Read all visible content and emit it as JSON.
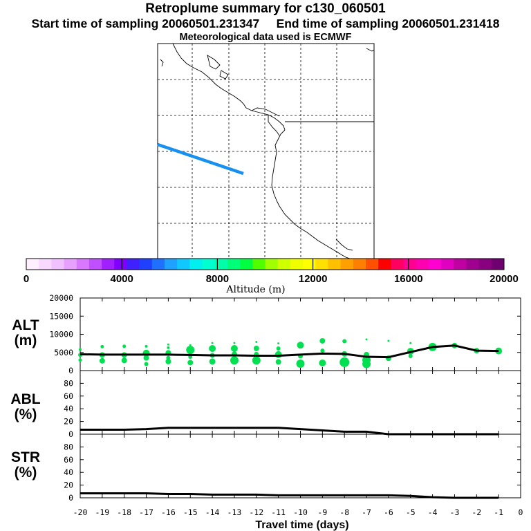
{
  "header": {
    "title": "Retroplume summary for c130_060501",
    "start_label": "Start time of sampling 20060501.231347",
    "end_label": "End time of sampling 20060501.231418",
    "met_label": "Meteorological data used is ECMWF"
  },
  "colorbar": {
    "ticks": [
      "0",
      "4000",
      "8000",
      "12000",
      "16000",
      "20000"
    ],
    "label": "Altitude (m)",
    "colors": [
      "#fff0ff",
      "#f8d8ff",
      "#f0c0ff",
      "#e8a0ff",
      "#d878ff",
      "#c050ff",
      "#a020ff",
      "#8000ff",
      "#4020ff",
      "#2040ff",
      "#2070ff",
      "#20a0ff",
      "#10c8ff",
      "#00f0f0",
      "#00ffd0",
      "#00ffa8",
      "#00ff78",
      "#00ff40",
      "#50ff00",
      "#a0ff00",
      "#d0ff00",
      "#f0ff00",
      "#ffff00",
      "#ffe000",
      "#ffc000",
      "#ffa000",
      "#ff8000",
      "#ff5000",
      "#ff0000",
      "#ff0060",
      "#ff0090",
      "#ff00b0",
      "#ff00d0",
      "#e000c0",
      "#c000a0",
      "#a00090",
      "#880080",
      "#700070"
    ]
  },
  "map": {
    "plume_color": "#1890f0"
  },
  "chart_data": [
    {
      "type": "scatter",
      "panel": "ALT",
      "ylabel_line1": "ALT",
      "ylabel_line2": "(m)",
      "ylim": [
        0,
        20000
      ],
      "yticks": [
        "20000",
        "15000",
        "10000",
        "5000",
        "0"
      ],
      "x": [
        -20,
        -19,
        -18,
        -17,
        -16,
        -15,
        -14,
        -13,
        -12,
        -11,
        -10,
        -9,
        -8,
        -7,
        -6,
        -5,
        -4,
        -3,
        -2,
        -1
      ],
      "mean_altitude": [
        4500,
        4400,
        4400,
        4400,
        4400,
        4300,
        4200,
        4200,
        4100,
        4100,
        4400,
        4700,
        4600,
        3800,
        3700,
        5100,
        6500,
        6900,
        5500,
        5400
      ],
      "point_color": "#00e050",
      "scatter_points": [
        [
          -20,
          2900,
          2.5
        ],
        [
          -20,
          4300,
          3
        ],
        [
          -20,
          5800,
          2
        ],
        [
          -19,
          2700,
          4
        ],
        [
          -19,
          4300,
          4
        ],
        [
          -19,
          6600,
          2.5
        ],
        [
          -18,
          2800,
          4
        ],
        [
          -18,
          4300,
          4
        ],
        [
          -18,
          6700,
          2.5
        ],
        [
          -17,
          1800,
          3
        ],
        [
          -17,
          3500,
          4
        ],
        [
          -17,
          4800,
          5
        ],
        [
          -17,
          6700,
          2
        ],
        [
          -16,
          2500,
          4
        ],
        [
          -16,
          3500,
          3
        ],
        [
          -16,
          4900,
          4
        ],
        [
          -16,
          6300,
          2
        ],
        [
          -16,
          7200,
          1.5
        ],
        [
          -15,
          2200,
          4
        ],
        [
          -15,
          3800,
          3
        ],
        [
          -15,
          5700,
          6
        ],
        [
          -15,
          7000,
          1.5
        ],
        [
          -14,
          2500,
          4.5
        ],
        [
          -14,
          4200,
          3.5
        ],
        [
          -14,
          6100,
          5
        ],
        [
          -14,
          7600,
          1.5
        ],
        [
          -13,
          2800,
          6
        ],
        [
          -13,
          4500,
          4
        ],
        [
          -13,
          6100,
          5
        ],
        [
          -13,
          7600,
          1.5
        ],
        [
          -12,
          2800,
          6
        ],
        [
          -12,
          4500,
          3.5
        ],
        [
          -12,
          6100,
          4
        ],
        [
          -12,
          7900,
          1.5
        ],
        [
          -11,
          2400,
          4
        ],
        [
          -11,
          4400,
          5
        ],
        [
          -11,
          6100,
          3
        ],
        [
          -11,
          7500,
          1.5
        ],
        [
          -10,
          1900,
          6
        ],
        [
          -10,
          4000,
          3.5
        ],
        [
          -10,
          7000,
          5
        ],
        [
          -9,
          2100,
          5
        ],
        [
          -9,
          5500,
          3
        ],
        [
          -9,
          8200,
          4
        ],
        [
          -8,
          2300,
          7
        ],
        [
          -8,
          4600,
          4
        ],
        [
          -8,
          8100,
          3
        ],
        [
          -7,
          1800,
          6
        ],
        [
          -7,
          2900,
          6
        ],
        [
          -7,
          4400,
          4
        ],
        [
          -7,
          8600,
          1.5
        ],
        [
          -6,
          3400,
          4
        ],
        [
          -6,
          8200,
          1.5
        ],
        [
          -5,
          4000,
          3
        ],
        [
          -5,
          5300,
          5
        ],
        [
          -5,
          7600,
          1.5
        ],
        [
          -4,
          6500,
          6
        ],
        [
          -3,
          6900,
          4
        ],
        [
          -2,
          5500,
          4
        ],
        [
          -1,
          5400,
          5
        ]
      ]
    },
    {
      "type": "line",
      "panel": "ABL",
      "ylabel_line1": "ABL",
      "ylabel_line2": "(%)",
      "ylim": [
        0,
        100
      ],
      "yticks": [
        "80",
        "60",
        "40",
        "20",
        "0"
      ],
      "x": [
        -20,
        -19,
        -18,
        -17,
        -16,
        -15,
        -14,
        -13,
        -12,
        -11,
        -10,
        -9,
        -8,
        -7,
        -6,
        -5,
        -4,
        -3,
        -2,
        -1
      ],
      "values": [
        7,
        7,
        7,
        8,
        10,
        10,
        10,
        10,
        10,
        10,
        8,
        6,
        4,
        4,
        0,
        0,
        0,
        0,
        0,
        0
      ]
    },
    {
      "type": "line",
      "panel": "STR",
      "ylabel_line1": "STR",
      "ylabel_line2": "(%)",
      "ylim": [
        0,
        100
      ],
      "yticks": [
        "80",
        "60",
        "40",
        "20",
        "0"
      ],
      "x": [
        -20,
        -19,
        -18,
        -17,
        -16,
        -15,
        -14,
        -13,
        -12,
        -11,
        -10,
        -9,
        -8,
        -7,
        -6,
        -5,
        -4,
        -3,
        -2,
        -1
      ],
      "values": [
        7,
        7,
        7,
        7,
        6,
        6,
        5,
        5,
        5,
        4,
        4,
        4,
        4,
        4,
        4,
        3,
        1,
        0,
        0,
        0
      ]
    }
  ],
  "xaxis": {
    "ticks": [
      "-20",
      "-19",
      "-18",
      "-17",
      "-16",
      "-15",
      "-14",
      "-13",
      "-12",
      "-11",
      "-10",
      "-9",
      "-8",
      "-7",
      "-6",
      "-5",
      "-4",
      "-3",
      "-2",
      "-1",
      "0"
    ],
    "label": "Travel time (days)"
  }
}
